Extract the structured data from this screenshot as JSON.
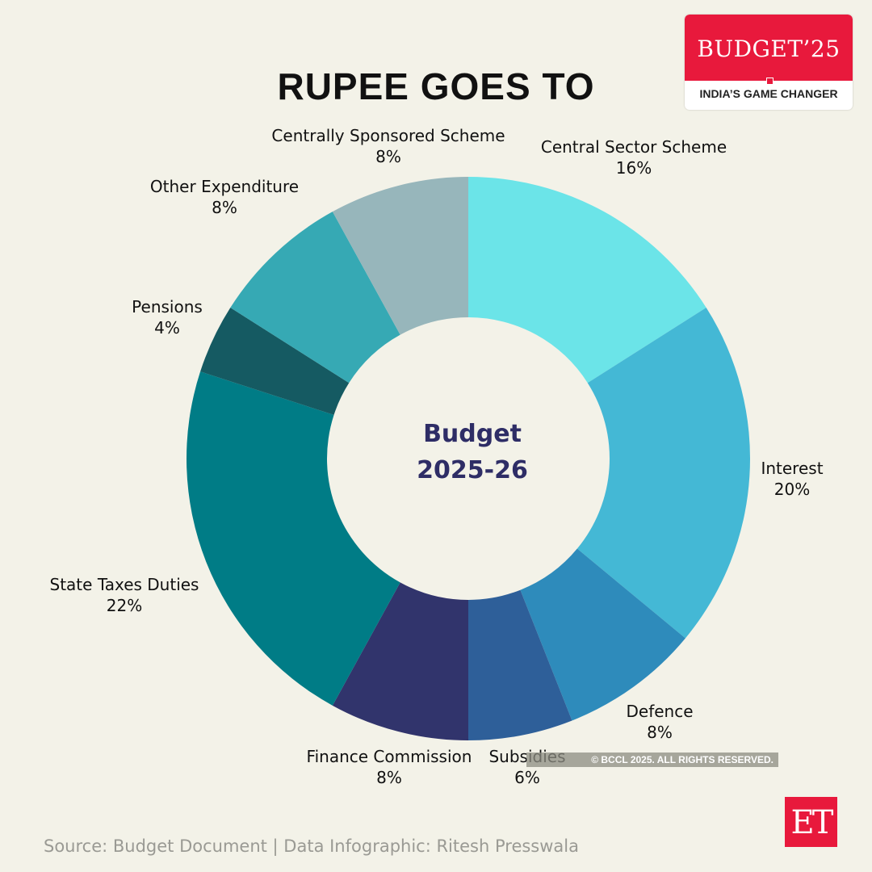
{
  "title": "RUPEE GOES TO",
  "badge": {
    "top": "BUDGET’25",
    "bottom": "INDIA’S GAME CHANGER",
    "color": "#e8193c"
  },
  "center": {
    "line1": "Budget",
    "line2": "2025-26"
  },
  "copyright": "© BCCL 2025. ALL RIGHTS RESERVED.",
  "source": "Source: Budget Document | Data Infographic: Ritesh Presswala",
  "logo": "ET",
  "chart_data": {
    "type": "pie",
    "title": "RUPEE GOES TO",
    "subtitle": "Budget 2025-26",
    "donut": true,
    "start_angle_deg": 0,
    "direction": "clockwise",
    "categories": [
      "Central Sector Scheme",
      "Interest",
      "Defence",
      "Subsidies",
      "Finance Commission",
      "State Taxes Duties",
      "Pensions",
      "Other Expenditure",
      "Centrally Sponsored Scheme"
    ],
    "values": [
      16,
      20,
      8,
      6,
      8,
      22,
      4,
      8,
      8
    ],
    "unit": "%",
    "colors": [
      "#6be4e8",
      "#44b8d5",
      "#2e8bbb",
      "#2e5f99",
      "#31346c",
      "#007c86",
      "#155a62",
      "#36a9b4",
      "#97b6bb"
    ],
    "labels": [
      {
        "name": "Central Sector Scheme",
        "pct": "16%"
      },
      {
        "name": "Interest",
        "pct": "20%"
      },
      {
        "name": "Defence",
        "pct": "8%"
      },
      {
        "name": "Subsidies",
        "pct": "6%"
      },
      {
        "name": "Finance Commission",
        "pct": "8%"
      },
      {
        "name": "State Taxes Duties",
        "pct": "22%"
      },
      {
        "name": "Pensions",
        "pct": "4%"
      },
      {
        "name": "Other Expenditure",
        "pct": "8%"
      },
      {
        "name": "Centrally Sponsored Scheme",
        "pct": "8%"
      }
    ]
  }
}
